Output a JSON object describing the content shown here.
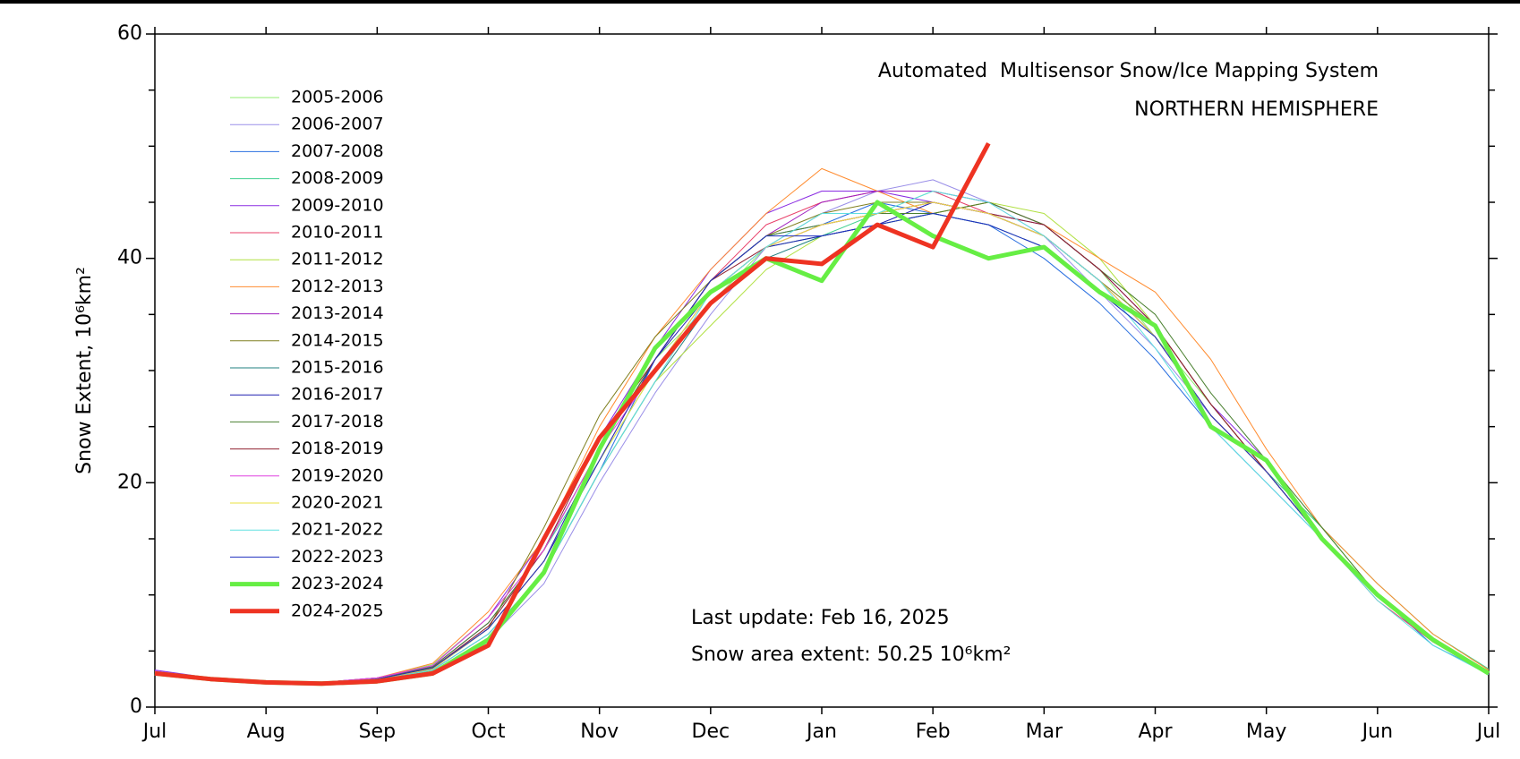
{
  "chart_data": {
    "type": "line",
    "annotations": [
      "Automated  Multisensor Snow/Ice Mapping System",
      "NORTHERN HEMISPHERE",
      "Last update: Feb 16, 2025",
      "Snow area extent: 50.25 10⁶km²"
    ],
    "y_label": "Snow Extent, 10⁶km²",
    "categories": [
      "Jul",
      null,
      "Aug",
      null,
      "Sep",
      null,
      "Oct",
      null,
      "Nov",
      null,
      "Dec",
      null,
      "Jan",
      null,
      "Feb",
      null,
      "Mar",
      null,
      "Apr",
      null,
      "May",
      null,
      "Jun",
      null,
      "Jul"
    ],
    "ylim": [
      0,
      60
    ],
    "yticks": [
      0,
      20,
      40,
      60
    ],
    "yminorticks": [
      5,
      10,
      15,
      25,
      30,
      35,
      45,
      50,
      55
    ],
    "series": [
      {
        "name": "2005-2006",
        "color": "#90ee70",
        "width": 1,
        "values": [
          3,
          2.6,
          2.3,
          2.2,
          2.6,
          3.8,
          8,
          14,
          23,
          31,
          36,
          41,
          44,
          44,
          46,
          45,
          43,
          39,
          33,
          27,
          21,
          16,
          10,
          6,
          3.2
        ]
      },
      {
        "name": "2006-2007",
        "color": "#9a8fe8",
        "width": 1,
        "values": [
          3.2,
          2.5,
          2.2,
          2.1,
          2.4,
          3.2,
          6,
          11,
          20,
          28,
          35,
          41,
          44,
          46,
          47,
          45,
          42,
          37,
          32,
          26,
          21,
          15,
          10,
          6,
          3
        ]
      },
      {
        "name": "2007-2008",
        "color": "#2a6fe0",
        "width": 1,
        "values": [
          3,
          2.5,
          2.1,
          2.0,
          2.4,
          3.3,
          6.5,
          12,
          21,
          31,
          38,
          42,
          43,
          45,
          44,
          43,
          40,
          36,
          31,
          25,
          20,
          15,
          10,
          5.5,
          3
        ]
      },
      {
        "name": "2008-2009",
        "color": "#40d090",
        "width": 1,
        "values": [
          2.9,
          2.4,
          2.2,
          2.1,
          2.5,
          3.6,
          7.5,
          14,
          22,
          30,
          37,
          41,
          42,
          44,
          45,
          44,
          42,
          38,
          33,
          26,
          21,
          16,
          11,
          6.5,
          3.4
        ]
      },
      {
        "name": "2009-2010",
        "color": "#8a2be2",
        "width": 1,
        "values": [
          3.3,
          2.6,
          2.3,
          2.2,
          2.6,
          3.7,
          8,
          15,
          24,
          32,
          39,
          44,
          46,
          46,
          45,
          44,
          43,
          39,
          34,
          27,
          22,
          15,
          10,
          6,
          3
        ]
      },
      {
        "name": "2010-2011",
        "color": "#e8406a",
        "width": 1,
        "values": [
          3,
          2.5,
          2.2,
          2.1,
          2.5,
          3.4,
          7,
          13,
          22,
          31,
          38,
          43,
          45,
          46,
          46,
          44,
          42,
          38,
          33,
          26,
          21,
          15,
          9.5,
          5.8,
          3
        ]
      },
      {
        "name": "2011-2012",
        "color": "#b0e040",
        "width": 1,
        "values": [
          3.1,
          2.5,
          2.2,
          2.1,
          2.4,
          3.2,
          6.2,
          12,
          21,
          29,
          34,
          39,
          42,
          43,
          44,
          45,
          44,
          40,
          34,
          27,
          21,
          15,
          10,
          6,
          3.1
        ]
      },
      {
        "name": "2012-2013",
        "color": "#ff8c30",
        "width": 1,
        "values": [
          3,
          2.6,
          2.3,
          2.2,
          2.6,
          3.9,
          8.5,
          15,
          25,
          33,
          39,
          44,
          48,
          46,
          44,
          45,
          43,
          40,
          37,
          31,
          23,
          16,
          11,
          6.5,
          3.3
        ]
      },
      {
        "name": "2013-2014",
        "color": "#a020c0",
        "width": 1,
        "values": [
          3.2,
          2.6,
          2.3,
          2.2,
          2.6,
          3.6,
          7.5,
          14,
          23,
          31,
          38,
          42,
          45,
          46,
          46,
          45,
          43,
          39,
          34,
          27,
          21,
          15,
          10,
          6,
          3.1
        ]
      },
      {
        "name": "2014-2015",
        "color": "#808020",
        "width": 1,
        "values": [
          3.1,
          2.5,
          2.2,
          2.1,
          2.5,
          3.5,
          7,
          16,
          26,
          33,
          38,
          42,
          44,
          45,
          45,
          44,
          42,
          38,
          34,
          27,
          21,
          15,
          10,
          6,
          3.2
        ]
      },
      {
        "name": "2015-2016",
        "color": "#208080",
        "width": 1,
        "values": [
          3,
          2.5,
          2.2,
          2.1,
          2.4,
          3.3,
          6.5,
          12,
          21,
          29,
          36,
          40,
          42,
          43,
          44,
          43,
          41,
          37,
          33,
          26,
          21,
          15,
          10,
          6,
          3
        ]
      },
      {
        "name": "2016-2017",
        "color": "#2020b0",
        "width": 1,
        "values": [
          3.1,
          2.5,
          2.2,
          2.1,
          2.5,
          3.4,
          7,
          13,
          23,
          31,
          37,
          41,
          42,
          43,
          45,
          44,
          42,
          38,
          33,
          26,
          21,
          15,
          10,
          6,
          3
        ]
      },
      {
        "name": "2017-2018",
        "color": "#4a8030",
        "width": 1,
        "values": [
          3,
          2.5,
          2.2,
          2.1,
          2.5,
          3.6,
          7.5,
          14,
          23,
          31,
          38,
          42,
          43,
          44,
          44,
          45,
          43,
          39,
          35,
          28,
          22,
          16,
          10,
          6,
          3.1
        ]
      },
      {
        "name": "2018-2019",
        "color": "#902030",
        "width": 1,
        "values": [
          3,
          2.5,
          2.2,
          2.1,
          2.5,
          3.5,
          7.2,
          14,
          24,
          31,
          38,
          41,
          43,
          44,
          45,
          44,
          43,
          39,
          34,
          27,
          21,
          15,
          10,
          6,
          3
        ]
      },
      {
        "name": "2019-2020",
        "color": "#e040e0",
        "width": 1,
        "values": [
          3.2,
          2.6,
          2.3,
          2.2,
          2.6,
          3.7,
          8,
          14,
          23,
          30,
          37,
          41,
          43,
          44,
          45,
          44,
          42,
          38,
          33,
          26,
          21,
          15,
          10,
          6,
          3.1
        ]
      },
      {
        "name": "2020-2021",
        "color": "#e8e040",
        "width": 1,
        "values": [
          3,
          2.5,
          2.2,
          2.1,
          2.5,
          3.4,
          7,
          13,
          22,
          30,
          37,
          41,
          43,
          44,
          45,
          44,
          42,
          38,
          33,
          26,
          21,
          15,
          10,
          6,
          3
        ]
      },
      {
        "name": "2021-2022",
        "color": "#60e0e0",
        "width": 1,
        "values": [
          3.1,
          2.5,
          2.2,
          2.1,
          2.4,
          3.3,
          6.5,
          12,
          21,
          29,
          37,
          41,
          44,
          44,
          46,
          45,
          42,
          38,
          32,
          25,
          20,
          15,
          9.5,
          5.5,
          2.9
        ]
      },
      {
        "name": "2022-2023",
        "color": "#2030c0",
        "width": 1,
        "values": [
          3,
          2.5,
          2.2,
          2.1,
          2.5,
          3.5,
          7,
          13,
          22,
          31,
          38,
          42,
          42,
          43,
          44,
          43,
          41,
          37,
          33,
          26,
          21,
          15,
          10,
          6,
          3
        ]
      },
      {
        "name": "2023-2024",
        "color": "#66ee44",
        "width": 5,
        "values": [
          3,
          2.5,
          2.2,
          2.1,
          2.3,
          3,
          6,
          12,
          23,
          32,
          37,
          40,
          38,
          45,
          42,
          40,
          41,
          37,
          34,
          25,
          22,
          15,
          10,
          6,
          3
        ]
      },
      {
        "name": "2024-2025",
        "color": "#ee3322",
        "width": 5,
        "values": [
          3,
          2.5,
          2.2,
          2.1,
          2.3,
          3,
          5.5,
          15,
          24,
          30,
          36,
          40,
          39.5,
          43,
          41,
          50.25,
          null,
          null,
          null,
          null,
          null,
          null,
          null,
          null,
          null
        ]
      }
    ]
  }
}
